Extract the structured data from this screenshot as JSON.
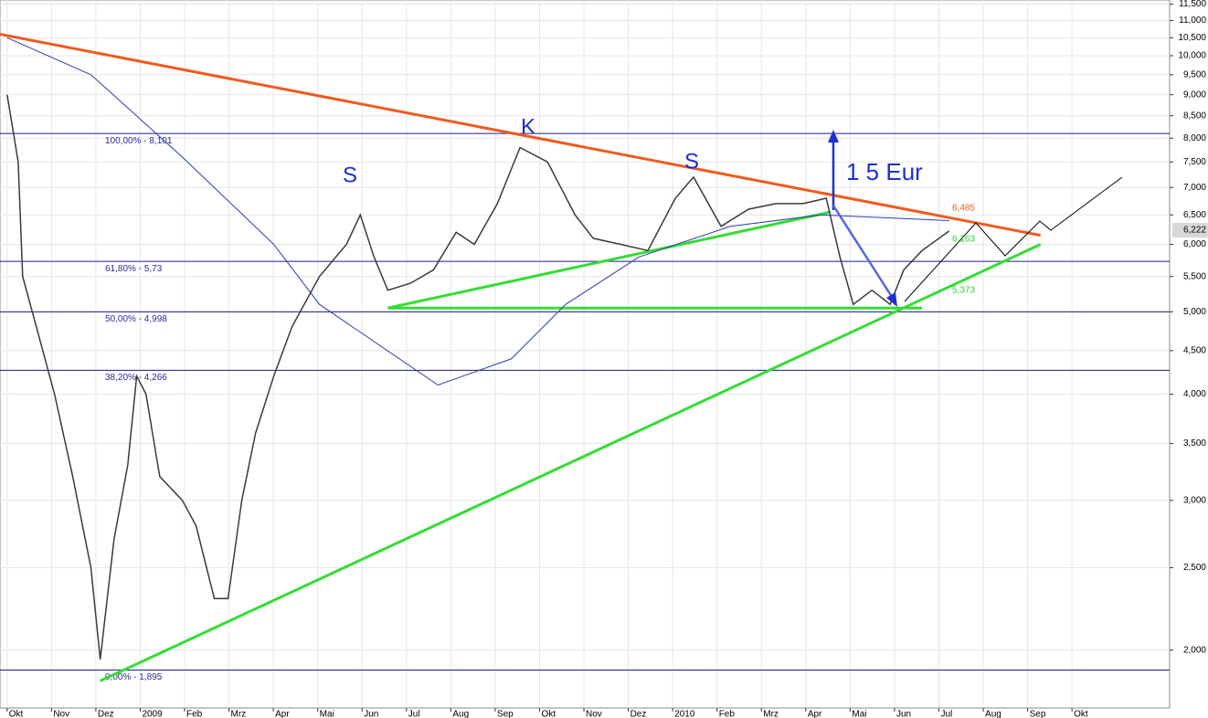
{
  "chart_data": {
    "type": "line",
    "log_scale": true,
    "grid": true,
    "xlim": [
      -0.16,
      26.2
    ],
    "ylim": [
      1.71,
      11.63
    ],
    "xticks": [
      {
        "value": 0,
        "label": "Okt"
      },
      {
        "value": 1,
        "label": "Nov"
      },
      {
        "value": 2,
        "label": "Dez"
      },
      {
        "value": 3,
        "label": "2009"
      },
      {
        "value": 4,
        "label": "Feb"
      },
      {
        "value": 5,
        "label": "Mrz"
      },
      {
        "value": 6,
        "label": "Apr"
      },
      {
        "value": 7,
        "label": "Mai"
      },
      {
        "value": 8,
        "label": "Jun"
      },
      {
        "value": 9,
        "label": "Jul"
      },
      {
        "value": 10,
        "label": "Aug"
      },
      {
        "value": 11,
        "label": "Sep"
      },
      {
        "value": 12,
        "label": "Okt"
      },
      {
        "value": 13,
        "label": "Nov"
      },
      {
        "value": 14,
        "label": "Dez"
      },
      {
        "value": 15,
        "label": "2010"
      },
      {
        "value": 16,
        "label": "Feb"
      },
      {
        "value": 17,
        "label": "Mrz"
      },
      {
        "value": 18,
        "label": "Apr"
      },
      {
        "value": 19,
        "label": "Mai"
      },
      {
        "value": 20,
        "label": "Jun"
      },
      {
        "value": 21,
        "label": "Jul"
      },
      {
        "value": 22,
        "label": "Aug"
      },
      {
        "value": 23,
        "label": "Sep"
      },
      {
        "value": 24,
        "label": "Okt"
      }
    ],
    "yticks": [
      {
        "value": 2,
        "label": "2,000"
      },
      {
        "value": 2.5,
        "label": "2,500"
      },
      {
        "value": 3,
        "label": "3,000"
      },
      {
        "value": 3.5,
        "label": "3,500"
      },
      {
        "value": 4,
        "label": "4,000"
      },
      {
        "value": 4.5,
        "label": "4,500"
      },
      {
        "value": 5,
        "label": "5,000"
      },
      {
        "value": 5.5,
        "label": "5,500"
      },
      {
        "value": 6,
        "label": "6,000"
      },
      {
        "value": 6.5,
        "label": "6,500"
      },
      {
        "value": 7,
        "label": "7,000"
      },
      {
        "value": 7.5,
        "label": "7,500"
      },
      {
        "value": 8,
        "label": "8,000"
      },
      {
        "value": 8.5,
        "label": "8,500"
      },
      {
        "value": 9,
        "label": "9,000"
      },
      {
        "value": 9.5,
        "label": "9,500"
      },
      {
        "value": 10,
        "label": "10,000"
      },
      {
        "value": 10.5,
        "label": "10,500"
      },
      {
        "value": 11,
        "label": "11,000"
      },
      {
        "value": 11.5,
        "label": "11,500"
      }
    ],
    "series": [
      {
        "color": "#3a3a3a",
        "x": [
          0,
          0.25,
          0.35,
          0.66,
          1.07,
          1.48,
          1.89,
          2.1,
          2.41,
          2.72,
          2.92,
          3.13,
          3.44,
          3.95,
          4.26,
          4.67,
          4.98,
          5.29,
          5.6,
          6.01,
          6.42,
          7.04,
          7.65,
          7.96,
          8.27,
          8.58,
          9.09,
          9.61,
          10.12,
          10.53,
          11.05,
          11.56,
          12.18,
          12.8,
          13.21,
          13.83,
          14.44,
          15.06,
          15.47,
          16.09,
          16.71,
          17.33,
          17.94,
          18.46,
          18.77,
          19.07,
          19.49,
          19.9,
          20.21,
          20.62,
          21.23
        ],
        "values": [
          9.0,
          7.5,
          5.5,
          4.8,
          4.0,
          3.2,
          2.5,
          1.95,
          2.7,
          3.3,
          4.2,
          4.0,
          3.2,
          3.0,
          2.8,
          2.3,
          2.3,
          3.0,
          3.6,
          4.2,
          4.8,
          5.5,
          6.0,
          6.5,
          5.8,
          5.3,
          5.4,
          5.6,
          6.2,
          6.0,
          6.7,
          7.8,
          7.5,
          6.5,
          6.1,
          6.0,
          5.9,
          6.8,
          7.2,
          6.3,
          6.6,
          6.7,
          6.7,
          6.8,
          5.8,
          5.1,
          5.3,
          5.1,
          5.6,
          5.9,
          6.222
        ]
      },
      {
        "color": "#2a3cb0",
        "x": [
          0,
          1.89,
          3.95,
          6.01,
          7.04,
          9.71,
          11.36,
          12.59,
          14.24,
          16.3,
          18.35,
          21.23
        ],
        "values": [
          10.5,
          9.5,
          7.6,
          6.0,
          5.1,
          4.1,
          4.4,
          5.1,
          5.8,
          6.3,
          6.5,
          6.4
        ]
      }
    ],
    "levels": [
      {
        "label": "100,00% - 8,101",
        "value": 8.101
      },
      {
        "label": "61,80% - 5,73",
        "value": 5.73
      },
      {
        "label": "50,00% - 4,998",
        "value": 4.998
      },
      {
        "label": "38,20% - 4,266",
        "value": 4.266
      },
      {
        "label": "0,00% - 1,895",
        "value": 1.895
      }
    ],
    "trendlines": [
      {
        "color": "#f05a1e",
        "x": [
          -0.16,
          23.29
        ],
        "values": [
          10.6,
          6.15
        ]
      },
      {
        "color": "#33dd33",
        "x": [
          2.1,
          23.29
        ],
        "values": [
          1.84,
          6.0
        ]
      },
      {
        "color": "#33dd33",
        "x": [
          8.58,
          18.56
        ],
        "values": [
          5.05,
          6.55
        ]
      },
      {
        "color": "#33dd33",
        "x": [
          8.58,
          20.62
        ],
        "values": [
          5.05,
          5.05
        ]
      }
    ],
    "annotations": [
      "S",
      "K",
      "S",
      "1 5 Eur",
      "6,485",
      "6,163",
      "5,373",
      "6,222"
    ]
  }
}
